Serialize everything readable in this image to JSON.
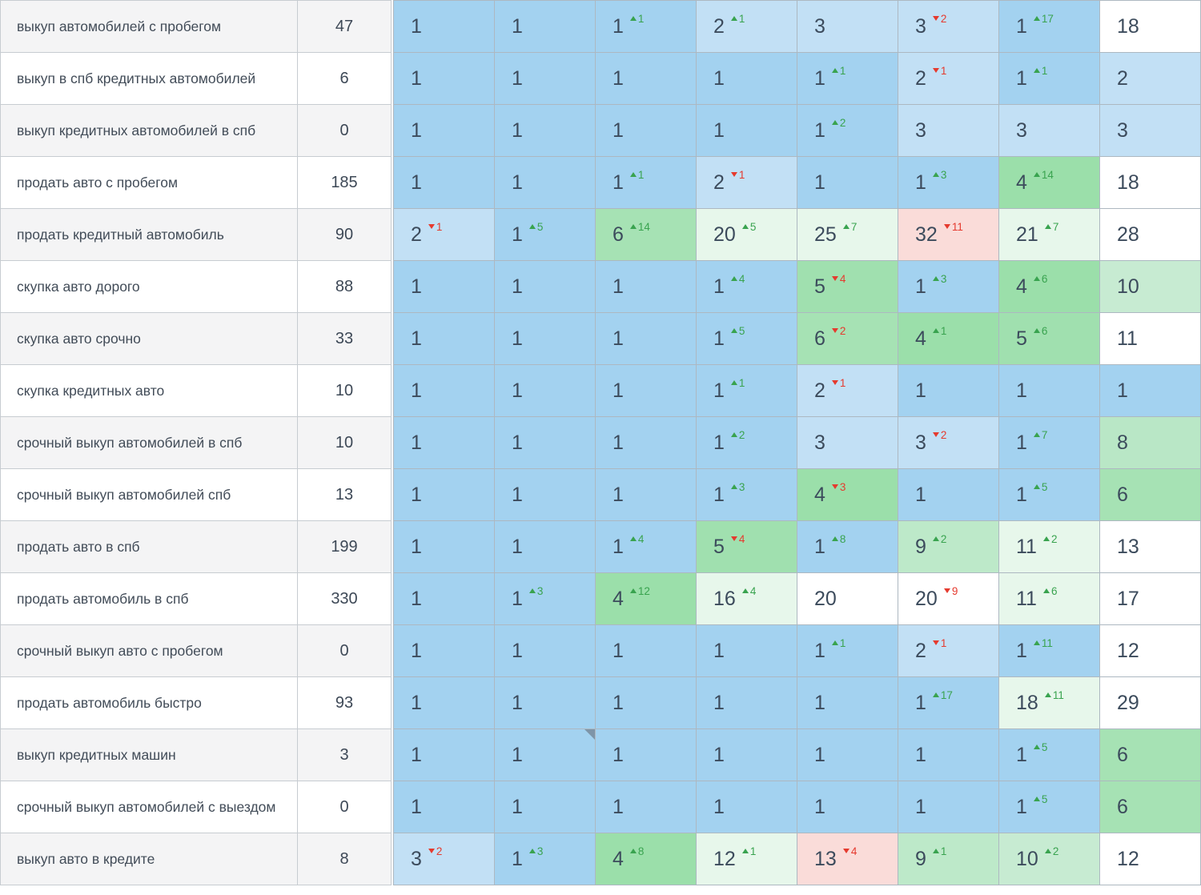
{
  "palette": {
    "pos1": "#a3d2f0",
    "pos23": "#c2e0f5",
    "g4": "#9bdfaa",
    "g5": "#a0e0af",
    "g6": "#a6e2b4",
    "g8": "#b9e7c6",
    "g9": "#bde9c9",
    "g10": "#c7ebd2",
    "lg": "#e7f7eb",
    "pink": "#fadcd9",
    "white": "#ffffff",
    "delta_up_color": "#39a34f",
    "delta_down_color": "#e53a2e",
    "note_marker_color": "#7e95a8"
  },
  "table": {
    "rows": [
      {
        "keyword": "выкуп автомобилей с пробегом",
        "frequency": "47",
        "cells": [
          {
            "v": "1",
            "bg": "pos1"
          },
          {
            "v": "1",
            "bg": "pos1"
          },
          {
            "v": "1",
            "bg": "pos1",
            "d": {
              "dir": "up",
              "v": "1"
            }
          },
          {
            "v": "2",
            "bg": "pos23",
            "d": {
              "dir": "up",
              "v": "1"
            }
          },
          {
            "v": "3",
            "bg": "pos23"
          },
          {
            "v": "3",
            "bg": "pos23",
            "d": {
              "dir": "down",
              "v": "2"
            }
          },
          {
            "v": "1",
            "bg": "pos1",
            "d": {
              "dir": "up",
              "v": "17"
            }
          },
          {
            "v": "18",
            "bg": "white"
          }
        ]
      },
      {
        "keyword": "выкуп в спб кредитных автомобилей",
        "frequency": "6",
        "cells": [
          {
            "v": "1",
            "bg": "pos1"
          },
          {
            "v": "1",
            "bg": "pos1"
          },
          {
            "v": "1",
            "bg": "pos1"
          },
          {
            "v": "1",
            "bg": "pos1"
          },
          {
            "v": "1",
            "bg": "pos1",
            "d": {
              "dir": "up",
              "v": "1"
            }
          },
          {
            "v": "2",
            "bg": "pos23",
            "d": {
              "dir": "down",
              "v": "1"
            }
          },
          {
            "v": "1",
            "bg": "pos1",
            "d": {
              "dir": "up",
              "v": "1"
            }
          },
          {
            "v": "2",
            "bg": "pos23"
          }
        ]
      },
      {
        "keyword": "выкуп кредитных автомобилей в спб",
        "frequency": "0",
        "cells": [
          {
            "v": "1",
            "bg": "pos1"
          },
          {
            "v": "1",
            "bg": "pos1"
          },
          {
            "v": "1",
            "bg": "pos1"
          },
          {
            "v": "1",
            "bg": "pos1"
          },
          {
            "v": "1",
            "bg": "pos1",
            "d": {
              "dir": "up",
              "v": "2"
            }
          },
          {
            "v": "3",
            "bg": "pos23"
          },
          {
            "v": "3",
            "bg": "pos23"
          },
          {
            "v": "3",
            "bg": "pos23"
          }
        ]
      },
      {
        "keyword": "продать авто с пробегом",
        "frequency": "185",
        "cells": [
          {
            "v": "1",
            "bg": "pos1"
          },
          {
            "v": "1",
            "bg": "pos1"
          },
          {
            "v": "1",
            "bg": "pos1",
            "d": {
              "dir": "up",
              "v": "1"
            }
          },
          {
            "v": "2",
            "bg": "pos23",
            "d": {
              "dir": "down",
              "v": "1"
            }
          },
          {
            "v": "1",
            "bg": "pos1"
          },
          {
            "v": "1",
            "bg": "pos1",
            "d": {
              "dir": "up",
              "v": "3"
            }
          },
          {
            "v": "4",
            "bg": "g4",
            "d": {
              "dir": "up",
              "v": "14"
            }
          },
          {
            "v": "18",
            "bg": "white"
          }
        ]
      },
      {
        "keyword": "продать кредитный автомобиль",
        "frequency": "90",
        "cells": [
          {
            "v": "2",
            "bg": "pos23",
            "d": {
              "dir": "down",
              "v": "1"
            }
          },
          {
            "v": "1",
            "bg": "pos1",
            "d": {
              "dir": "up",
              "v": "5"
            }
          },
          {
            "v": "6",
            "bg": "g6",
            "d": {
              "dir": "up",
              "v": "14"
            }
          },
          {
            "v": "20",
            "bg": "lg",
            "d": {
              "dir": "up",
              "v": "5"
            }
          },
          {
            "v": "25",
            "bg": "lg",
            "d": {
              "dir": "up",
              "v": "7"
            }
          },
          {
            "v": "32",
            "bg": "pink",
            "d": {
              "dir": "down",
              "v": "11"
            }
          },
          {
            "v": "21",
            "bg": "lg",
            "d": {
              "dir": "up",
              "v": "7"
            }
          },
          {
            "v": "28",
            "bg": "white"
          }
        ]
      },
      {
        "keyword": "скупка авто дорого",
        "frequency": "88",
        "cells": [
          {
            "v": "1",
            "bg": "pos1"
          },
          {
            "v": "1",
            "bg": "pos1"
          },
          {
            "v": "1",
            "bg": "pos1"
          },
          {
            "v": "1",
            "bg": "pos1",
            "d": {
              "dir": "up",
              "v": "4"
            }
          },
          {
            "v": "5",
            "bg": "g5",
            "d": {
              "dir": "down",
              "v": "4"
            }
          },
          {
            "v": "1",
            "bg": "pos1",
            "d": {
              "dir": "up",
              "v": "3"
            }
          },
          {
            "v": "4",
            "bg": "g4",
            "d": {
              "dir": "up",
              "v": "6"
            }
          },
          {
            "v": "10",
            "bg": "g10"
          }
        ]
      },
      {
        "keyword": "скупка авто срочно",
        "frequency": "33",
        "cells": [
          {
            "v": "1",
            "bg": "pos1"
          },
          {
            "v": "1",
            "bg": "pos1"
          },
          {
            "v": "1",
            "bg": "pos1"
          },
          {
            "v": "1",
            "bg": "pos1",
            "d": {
              "dir": "up",
              "v": "5"
            }
          },
          {
            "v": "6",
            "bg": "g6",
            "d": {
              "dir": "down",
              "v": "2"
            }
          },
          {
            "v": "4",
            "bg": "g4",
            "d": {
              "dir": "up",
              "v": "1"
            }
          },
          {
            "v": "5",
            "bg": "g5",
            "d": {
              "dir": "up",
              "v": "6"
            }
          },
          {
            "v": "11",
            "bg": "white"
          }
        ]
      },
      {
        "keyword": "скупка кредитных авто",
        "frequency": "10",
        "cells": [
          {
            "v": "1",
            "bg": "pos1"
          },
          {
            "v": "1",
            "bg": "pos1"
          },
          {
            "v": "1",
            "bg": "pos1"
          },
          {
            "v": "1",
            "bg": "pos1",
            "d": {
              "dir": "up",
              "v": "1"
            }
          },
          {
            "v": "2",
            "bg": "pos23",
            "d": {
              "dir": "down",
              "v": "1"
            }
          },
          {
            "v": "1",
            "bg": "pos1"
          },
          {
            "v": "1",
            "bg": "pos1"
          },
          {
            "v": "1",
            "bg": "pos1"
          }
        ]
      },
      {
        "keyword": "срочный выкуп автомобилей в спб",
        "frequency": "10",
        "cells": [
          {
            "v": "1",
            "bg": "pos1"
          },
          {
            "v": "1",
            "bg": "pos1"
          },
          {
            "v": "1",
            "bg": "pos1"
          },
          {
            "v": "1",
            "bg": "pos1",
            "d": {
              "dir": "up",
              "v": "2"
            }
          },
          {
            "v": "3",
            "bg": "pos23"
          },
          {
            "v": "3",
            "bg": "pos23",
            "d": {
              "dir": "down",
              "v": "2"
            }
          },
          {
            "v": "1",
            "bg": "pos1",
            "d": {
              "dir": "up",
              "v": "7"
            }
          },
          {
            "v": "8",
            "bg": "g8"
          }
        ]
      },
      {
        "keyword": "срочный выкуп автомобилей спб",
        "frequency": "13",
        "cells": [
          {
            "v": "1",
            "bg": "pos1"
          },
          {
            "v": "1",
            "bg": "pos1"
          },
          {
            "v": "1",
            "bg": "pos1"
          },
          {
            "v": "1",
            "bg": "pos1",
            "d": {
              "dir": "up",
              "v": "3"
            }
          },
          {
            "v": "4",
            "bg": "g4",
            "d": {
              "dir": "down",
              "v": "3"
            }
          },
          {
            "v": "1",
            "bg": "pos1"
          },
          {
            "v": "1",
            "bg": "pos1",
            "d": {
              "dir": "up",
              "v": "5"
            }
          },
          {
            "v": "6",
            "bg": "g6"
          }
        ]
      },
      {
        "keyword": "продать авто в спб",
        "frequency": "199",
        "cells": [
          {
            "v": "1",
            "bg": "pos1"
          },
          {
            "v": "1",
            "bg": "pos1"
          },
          {
            "v": "1",
            "bg": "pos1",
            "d": {
              "dir": "up",
              "v": "4"
            }
          },
          {
            "v": "5",
            "bg": "g5",
            "d": {
              "dir": "down",
              "v": "4"
            }
          },
          {
            "v": "1",
            "bg": "pos1",
            "d": {
              "dir": "up",
              "v": "8"
            }
          },
          {
            "v": "9",
            "bg": "g9",
            "d": {
              "dir": "up",
              "v": "2"
            }
          },
          {
            "v": "11",
            "bg": "lg",
            "d": {
              "dir": "up",
              "v": "2"
            }
          },
          {
            "v": "13",
            "bg": "white"
          }
        ]
      },
      {
        "keyword": "продать автомобиль в спб",
        "frequency": "330",
        "cells": [
          {
            "v": "1",
            "bg": "pos1"
          },
          {
            "v": "1",
            "bg": "pos1",
            "d": {
              "dir": "up",
              "v": "3"
            }
          },
          {
            "v": "4",
            "bg": "g4",
            "d": {
              "dir": "up",
              "v": "12"
            }
          },
          {
            "v": "16",
            "bg": "lg",
            "d": {
              "dir": "up",
              "v": "4"
            }
          },
          {
            "v": "20",
            "bg": "white"
          },
          {
            "v": "20",
            "bg": "white",
            "d": {
              "dir": "down",
              "v": "9"
            }
          },
          {
            "v": "11",
            "bg": "lg",
            "d": {
              "dir": "up",
              "v": "6"
            }
          },
          {
            "v": "17",
            "bg": "white"
          }
        ]
      },
      {
        "keyword": "срочный выкуп авто с пробегом",
        "frequency": "0",
        "cells": [
          {
            "v": "1",
            "bg": "pos1"
          },
          {
            "v": "1",
            "bg": "pos1"
          },
          {
            "v": "1",
            "bg": "pos1"
          },
          {
            "v": "1",
            "bg": "pos1"
          },
          {
            "v": "1",
            "bg": "pos1",
            "d": {
              "dir": "up",
              "v": "1"
            }
          },
          {
            "v": "2",
            "bg": "pos23",
            "d": {
              "dir": "down",
              "v": "1"
            }
          },
          {
            "v": "1",
            "bg": "pos1",
            "d": {
              "dir": "up",
              "v": "11"
            }
          },
          {
            "v": "12",
            "bg": "white"
          }
        ]
      },
      {
        "keyword": "продать автомобиль быстро",
        "frequency": "93",
        "cells": [
          {
            "v": "1",
            "bg": "pos1"
          },
          {
            "v": "1",
            "bg": "pos1"
          },
          {
            "v": "1",
            "bg": "pos1"
          },
          {
            "v": "1",
            "bg": "pos1"
          },
          {
            "v": "1",
            "bg": "pos1"
          },
          {
            "v": "1",
            "bg": "pos1",
            "d": {
              "dir": "up",
              "v": "17"
            }
          },
          {
            "v": "18",
            "bg": "lg",
            "d": {
              "dir": "up",
              "v": "11"
            }
          },
          {
            "v": "29",
            "bg": "white"
          }
        ]
      },
      {
        "keyword": "выкуп кредитных машин",
        "frequency": "3",
        "cells": [
          {
            "v": "1",
            "bg": "pos1"
          },
          {
            "v": "1",
            "bg": "pos1",
            "marker": true
          },
          {
            "v": "1",
            "bg": "pos1"
          },
          {
            "v": "1",
            "bg": "pos1"
          },
          {
            "v": "1",
            "bg": "pos1"
          },
          {
            "v": "1",
            "bg": "pos1"
          },
          {
            "v": "1",
            "bg": "pos1",
            "d": {
              "dir": "up",
              "v": "5"
            }
          },
          {
            "v": "6",
            "bg": "g6"
          }
        ]
      },
      {
        "keyword": "срочный выкуп автомобилей с выездом",
        "frequency": "0",
        "cells": [
          {
            "v": "1",
            "bg": "pos1"
          },
          {
            "v": "1",
            "bg": "pos1"
          },
          {
            "v": "1",
            "bg": "pos1"
          },
          {
            "v": "1",
            "bg": "pos1"
          },
          {
            "v": "1",
            "bg": "pos1"
          },
          {
            "v": "1",
            "bg": "pos1"
          },
          {
            "v": "1",
            "bg": "pos1",
            "d": {
              "dir": "up",
              "v": "5"
            }
          },
          {
            "v": "6",
            "bg": "g6"
          }
        ]
      },
      {
        "keyword": "выкуп авто в кредите",
        "frequency": "8",
        "cells": [
          {
            "v": "3",
            "bg": "pos23",
            "d": {
              "dir": "down",
              "v": "2"
            }
          },
          {
            "v": "1",
            "bg": "pos1",
            "d": {
              "dir": "up",
              "v": "3"
            }
          },
          {
            "v": "4",
            "bg": "g4",
            "d": {
              "dir": "up",
              "v": "8"
            }
          },
          {
            "v": "12",
            "bg": "lg",
            "d": {
              "dir": "up",
              "v": "1"
            }
          },
          {
            "v": "13",
            "bg": "pink",
            "d": {
              "dir": "down",
              "v": "4"
            }
          },
          {
            "v": "9",
            "bg": "g9",
            "d": {
              "dir": "up",
              "v": "1"
            }
          },
          {
            "v": "10",
            "bg": "g10",
            "d": {
              "dir": "up",
              "v": "2"
            }
          },
          {
            "v": "12",
            "bg": "white"
          }
        ]
      }
    ]
  }
}
